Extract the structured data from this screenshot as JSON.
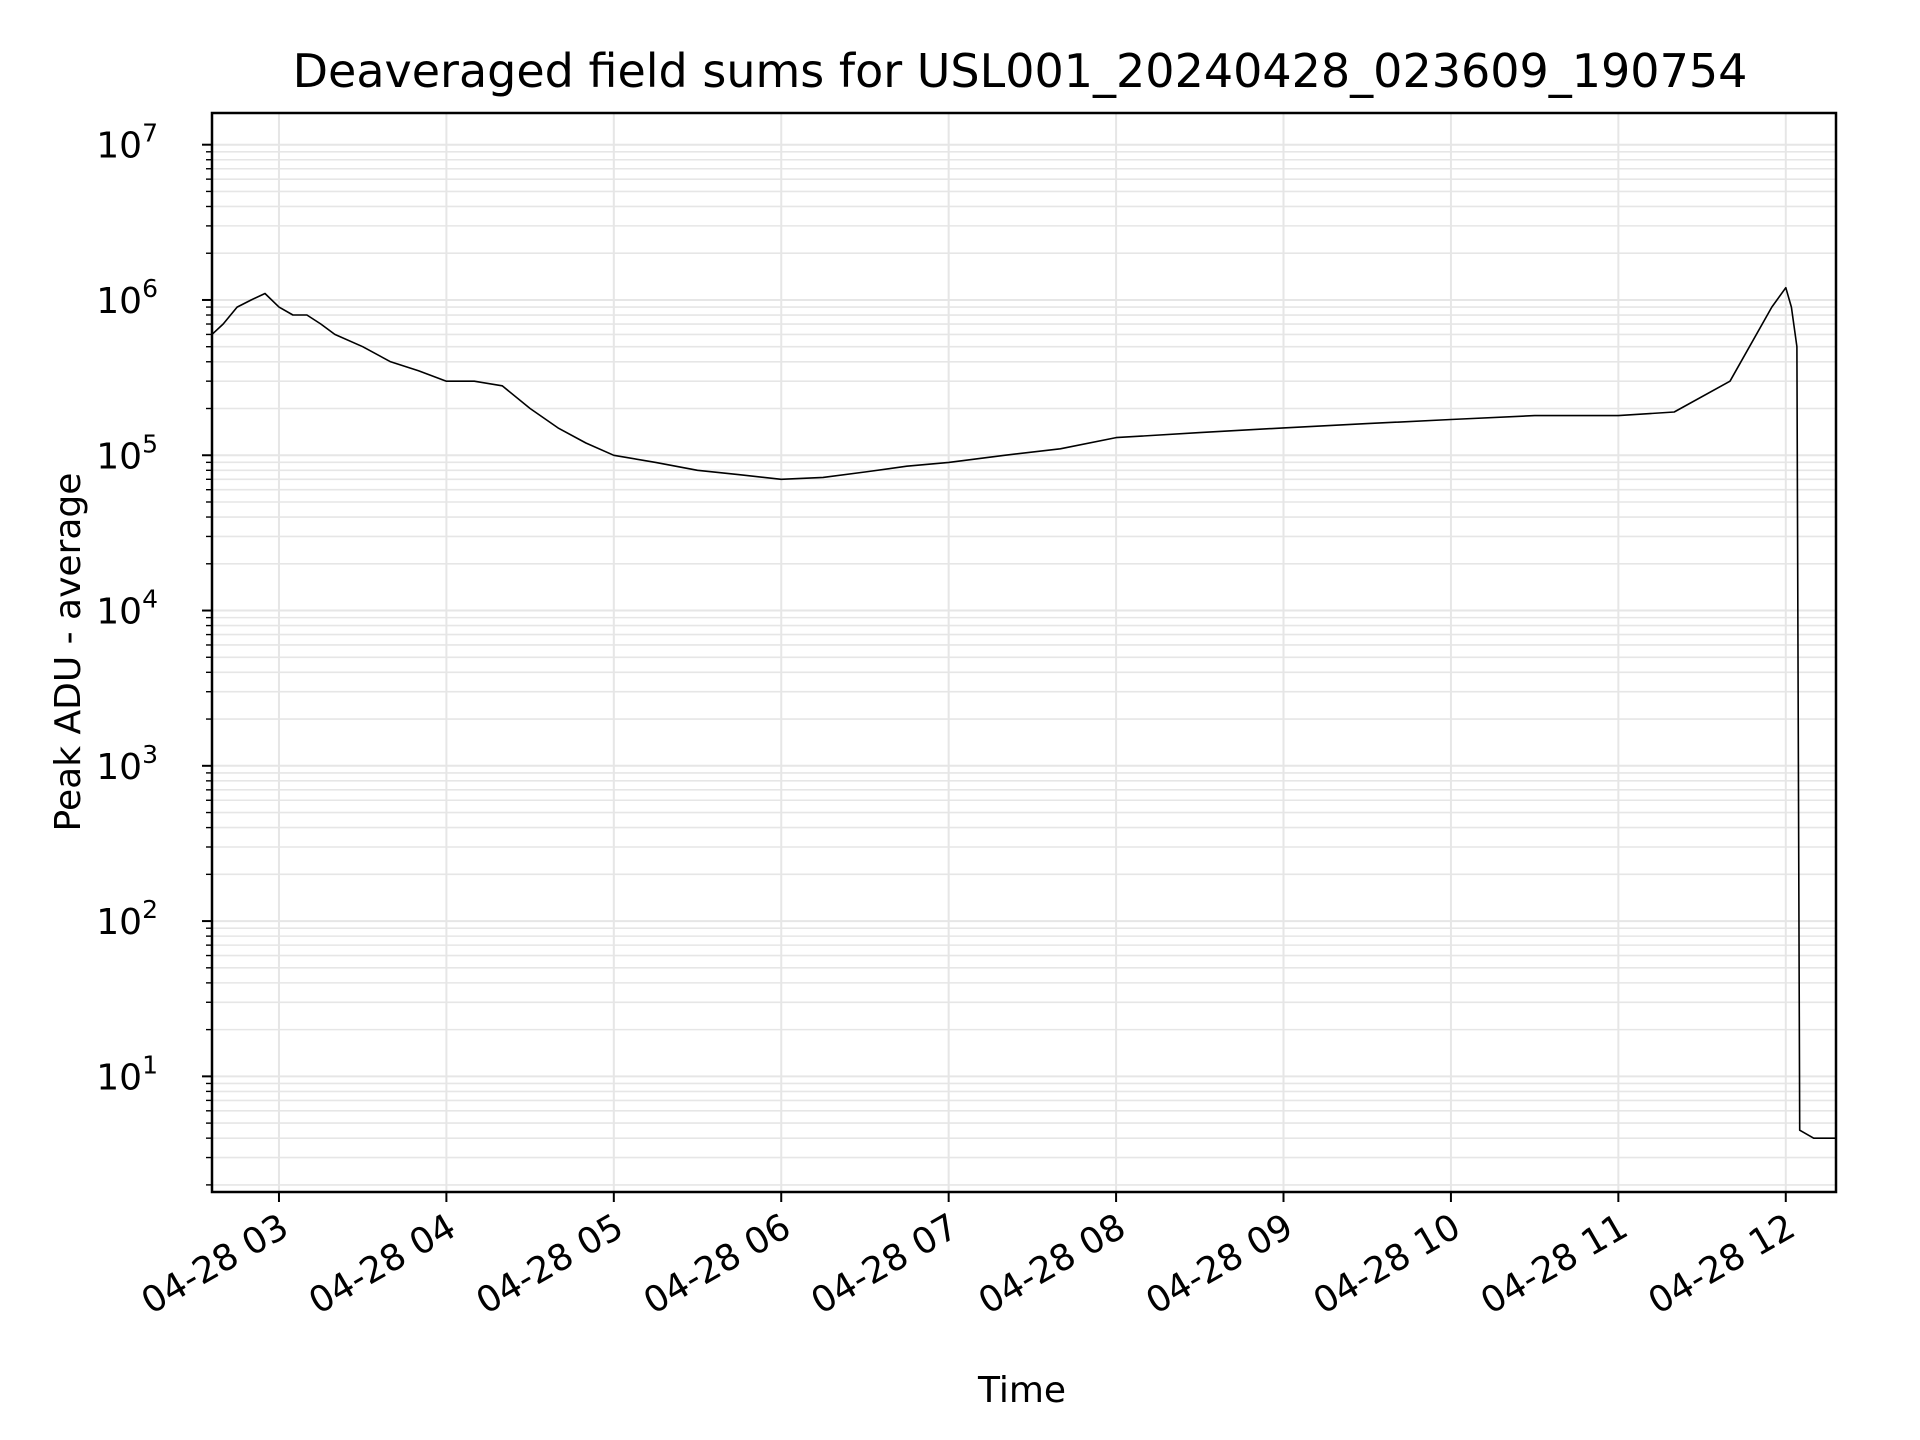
{
  "chart_data": {
    "type": "line",
    "title": "Deaveraged field sums for USL001_20240428_023609_190754",
    "xlabel": "Time",
    "ylabel": "Peak ADU - average",
    "yscale": "log",
    "ylim": [
      1.8,
      16000000
    ],
    "xlim": [
      "2024-04-28 02:36",
      "2024-04-28 12:18"
    ],
    "grid": true,
    "line_color": "#000000",
    "grid_color": "#e6e6e6",
    "y_ticks": [
      {
        "base": "10",
        "exp": "1",
        "value": 10
      },
      {
        "base": "10",
        "exp": "2",
        "value": 100
      },
      {
        "base": "10",
        "exp": "3",
        "value": 1000
      },
      {
        "base": "10",
        "exp": "4",
        "value": 10000
      },
      {
        "base": "10",
        "exp": "5",
        "value": 100000
      },
      {
        "base": "10",
        "exp": "6",
        "value": 1000000
      },
      {
        "base": "10",
        "exp": "7",
        "value": 10000000
      }
    ],
    "x_ticks": [
      {
        "label": "04-28 03",
        "time": "2024-04-28 03:00"
      },
      {
        "label": "04-28 04",
        "time": "2024-04-28 04:00"
      },
      {
        "label": "04-28 05",
        "time": "2024-04-28 05:00"
      },
      {
        "label": "04-28 06",
        "time": "2024-04-28 06:00"
      },
      {
        "label": "04-28 07",
        "time": "2024-04-28 07:00"
      },
      {
        "label": "04-28 08",
        "time": "2024-04-28 08:00"
      },
      {
        "label": "04-28 09",
        "time": "2024-04-28 09:00"
      },
      {
        "label": "04-28 10",
        "time": "2024-04-28 10:00"
      },
      {
        "label": "04-28 11",
        "time": "2024-04-28 11:00"
      },
      {
        "label": "04-28 12",
        "time": "2024-04-28 12:00"
      }
    ],
    "series": [
      {
        "x": [
          "2024-04-28 02:36",
          "2024-04-28 02:40",
          "2024-04-28 02:45",
          "2024-04-28 02:50",
          "2024-04-28 02:55",
          "2024-04-28 03:00",
          "2024-04-28 03:05",
          "2024-04-28 03:10",
          "2024-04-28 03:15",
          "2024-04-28 03:20",
          "2024-04-28 03:30",
          "2024-04-28 03:40",
          "2024-04-28 03:50",
          "2024-04-28 04:00",
          "2024-04-28 04:10",
          "2024-04-28 04:20",
          "2024-04-28 04:30",
          "2024-04-28 04:40",
          "2024-04-28 04:50",
          "2024-04-28 05:00",
          "2024-04-28 05:15",
          "2024-04-28 05:30",
          "2024-04-28 05:45",
          "2024-04-28 06:00",
          "2024-04-28 06:15",
          "2024-04-28 06:30",
          "2024-04-28 06:45",
          "2024-04-28 07:00",
          "2024-04-28 07:20",
          "2024-04-28 07:40",
          "2024-04-28 08:00",
          "2024-04-28 08:30",
          "2024-04-28 09:00",
          "2024-04-28 09:30",
          "2024-04-28 10:00",
          "2024-04-28 10:30",
          "2024-04-28 11:00",
          "2024-04-28 11:20",
          "2024-04-28 11:40",
          "2024-04-28 11:55",
          "2024-04-28 12:00",
          "2024-04-28 12:02",
          "2024-04-28 12:04",
          "2024-04-28 12:05",
          "2024-04-28 12:10",
          "2024-04-28 12:18"
        ],
        "y": [
          600000,
          700000,
          900000,
          1000000,
          1100000,
          900000,
          800000,
          800000,
          700000,
          600000,
          500000,
          400000,
          350000,
          300000,
          300000,
          280000,
          200000,
          150000,
          120000,
          100000,
          90000,
          80000,
          75000,
          70000,
          72000,
          78000,
          85000,
          90000,
          100000,
          110000,
          130000,
          140000,
          150000,
          160000,
          170000,
          180000,
          180000,
          190000,
          300000,
          900000,
          1200000,
          900000,
          500000,
          4.5,
          4,
          4
        ]
      }
    ]
  }
}
